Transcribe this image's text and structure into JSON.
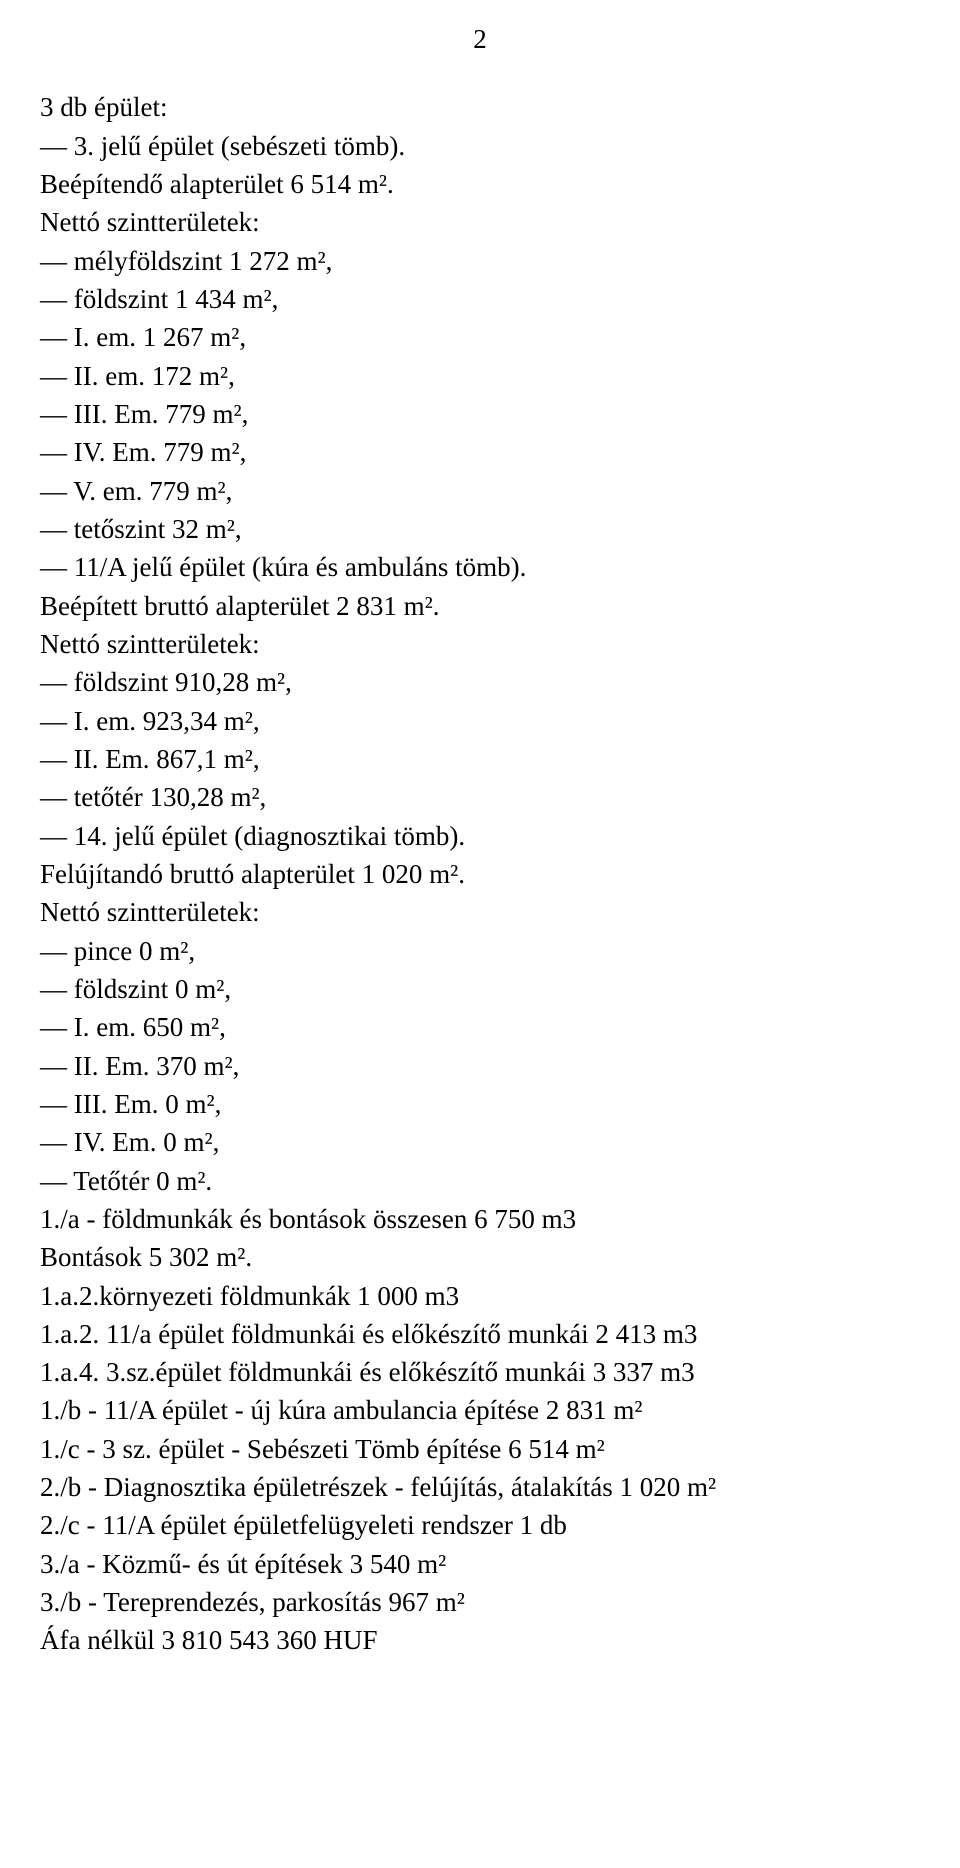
{
  "page_number": "2",
  "lines": [
    "3 db épület:",
    "— 3. jelű épület (sebészeti tömb).",
    "Beépítendő alapterület 6 514 m².",
    "Nettó szintterületek:",
    "— mélyföldszint 1 272 m²,",
    "— földszint 1 434 m²,",
    "— I. em. 1 267 m²,",
    "— II. em. 172 m²,",
    "— III. Em. 779 m²,",
    "— IV. Em. 779 m²,",
    "— V. em. 779 m²,",
    "— tetőszint 32 m²,",
    "— 11/A jelű épület (kúra és ambuláns tömb).",
    "Beépített bruttó alapterület 2 831 m².",
    "Nettó szintterületek:",
    "— földszint 910,28 m²,",
    "— I. em. 923,34 m²,",
    "— II. Em. 867,1 m²,",
    "— tetőtér 130,28 m²,",
    "— 14. jelű épület (diagnosztikai tömb).",
    "Felújítandó bruttó alapterület 1 020 m².",
    "Nettó szintterületek:",
    "— pince 0 m²,",
    "— földszint 0 m²,",
    "— I. em. 650 m²,",
    "— II. Em. 370 m²,",
    "— III. Em. 0 m²,",
    "— IV. Em. 0 m²,",
    "— Tetőtér 0 m².",
    "1./a - földmunkák és bontások összesen 6 750 m3",
    "Bontások 5 302 m².",
    "1.a.2.környezeti földmunkák 1 000 m3",
    "1.a.2. 11/a épület földmunkái és előkészítő munkái 2 413 m3",
    "1.a.4. 3.sz.épület földmunkái és előkészítő munkái 3 337 m3",
    "1./b - 11/A épület - új kúra ambulancia építése 2 831 m²",
    "1./c - 3 sz. épület - Sebészeti Tömb építése 6 514 m²",
    "2./b - Diagnosztika épületrészek - felújítás, átalakítás 1 020 m²",
    "2./c - 11/A épület épületfelügyeleti rendszer 1 db",
    "3./a - Közmű- és út építések 3 540 m²",
    "3./b - Tereprendezés, parkosítás 967 m²",
    "Áfa nélkül 3 810 543 360 HUF"
  ]
}
